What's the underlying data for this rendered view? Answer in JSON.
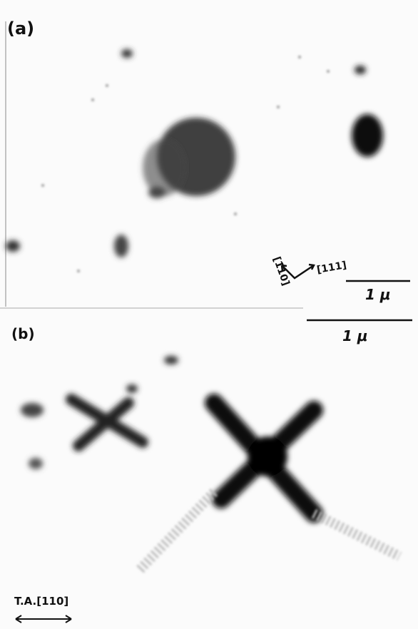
{
  "panels": [
    {
      "label": "(a)",
      "directions": [
        "[1̄10]",
        "[111]"
      ],
      "scale": "1 μ"
    },
    {
      "label": "(b)",
      "scale": "1 μ",
      "axis": "T.A.[110]"
    }
  ]
}
